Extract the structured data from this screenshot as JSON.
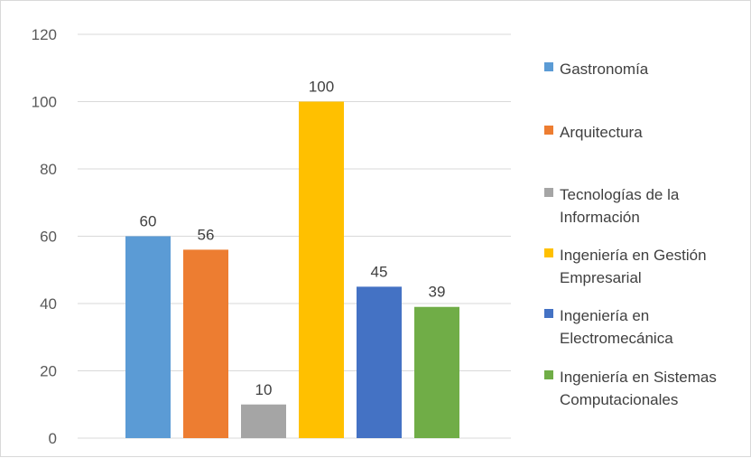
{
  "chart_data": {
    "type": "bar",
    "title": "",
    "xlabel": "",
    "ylabel": "",
    "ylim": [
      0,
      120
    ],
    "yticks": [
      0,
      20,
      40,
      60,
      80,
      100,
      120
    ],
    "grid": true,
    "legend_position": "right",
    "categories": [
      "Gastronomía",
      "Arquitectura",
      "Tecnologías de la Información",
      "Ingeniería en Gestión Empresarial",
      "Ingeniería en Electromecánica",
      "Ingeniería en Sistemas Computacionales"
    ],
    "values": [
      60,
      56,
      10,
      100,
      45,
      39
    ],
    "data_labels": [
      "60",
      "56",
      "10",
      "100",
      "45",
      "39"
    ],
    "colors": [
      "#5B9BD5",
      "#ED7D31",
      "#A5A5A5",
      "#FFC000",
      "#4472C4",
      "#70AD47"
    ],
    "legend": [
      {
        "lines": [
          "Gastronomía"
        ],
        "color": "#5B9BD5"
      },
      {
        "lines": [
          "Arquitectura"
        ],
        "color": "#ED7D31"
      },
      {
        "lines": [
          "Tecnologías de la",
          "Información"
        ],
        "color": "#A5A5A5"
      },
      {
        "lines": [
          "Ingeniería en Gestión",
          "Empresarial"
        ],
        "color": "#FFC000"
      },
      {
        "lines": [
          "Ingeniería en",
          "Electromecánica"
        ],
        "color": "#4472C4"
      },
      {
        "lines": [
          "Ingeniería en Sistemas",
          "Computacionales"
        ],
        "color": "#70AD47"
      }
    ]
  }
}
